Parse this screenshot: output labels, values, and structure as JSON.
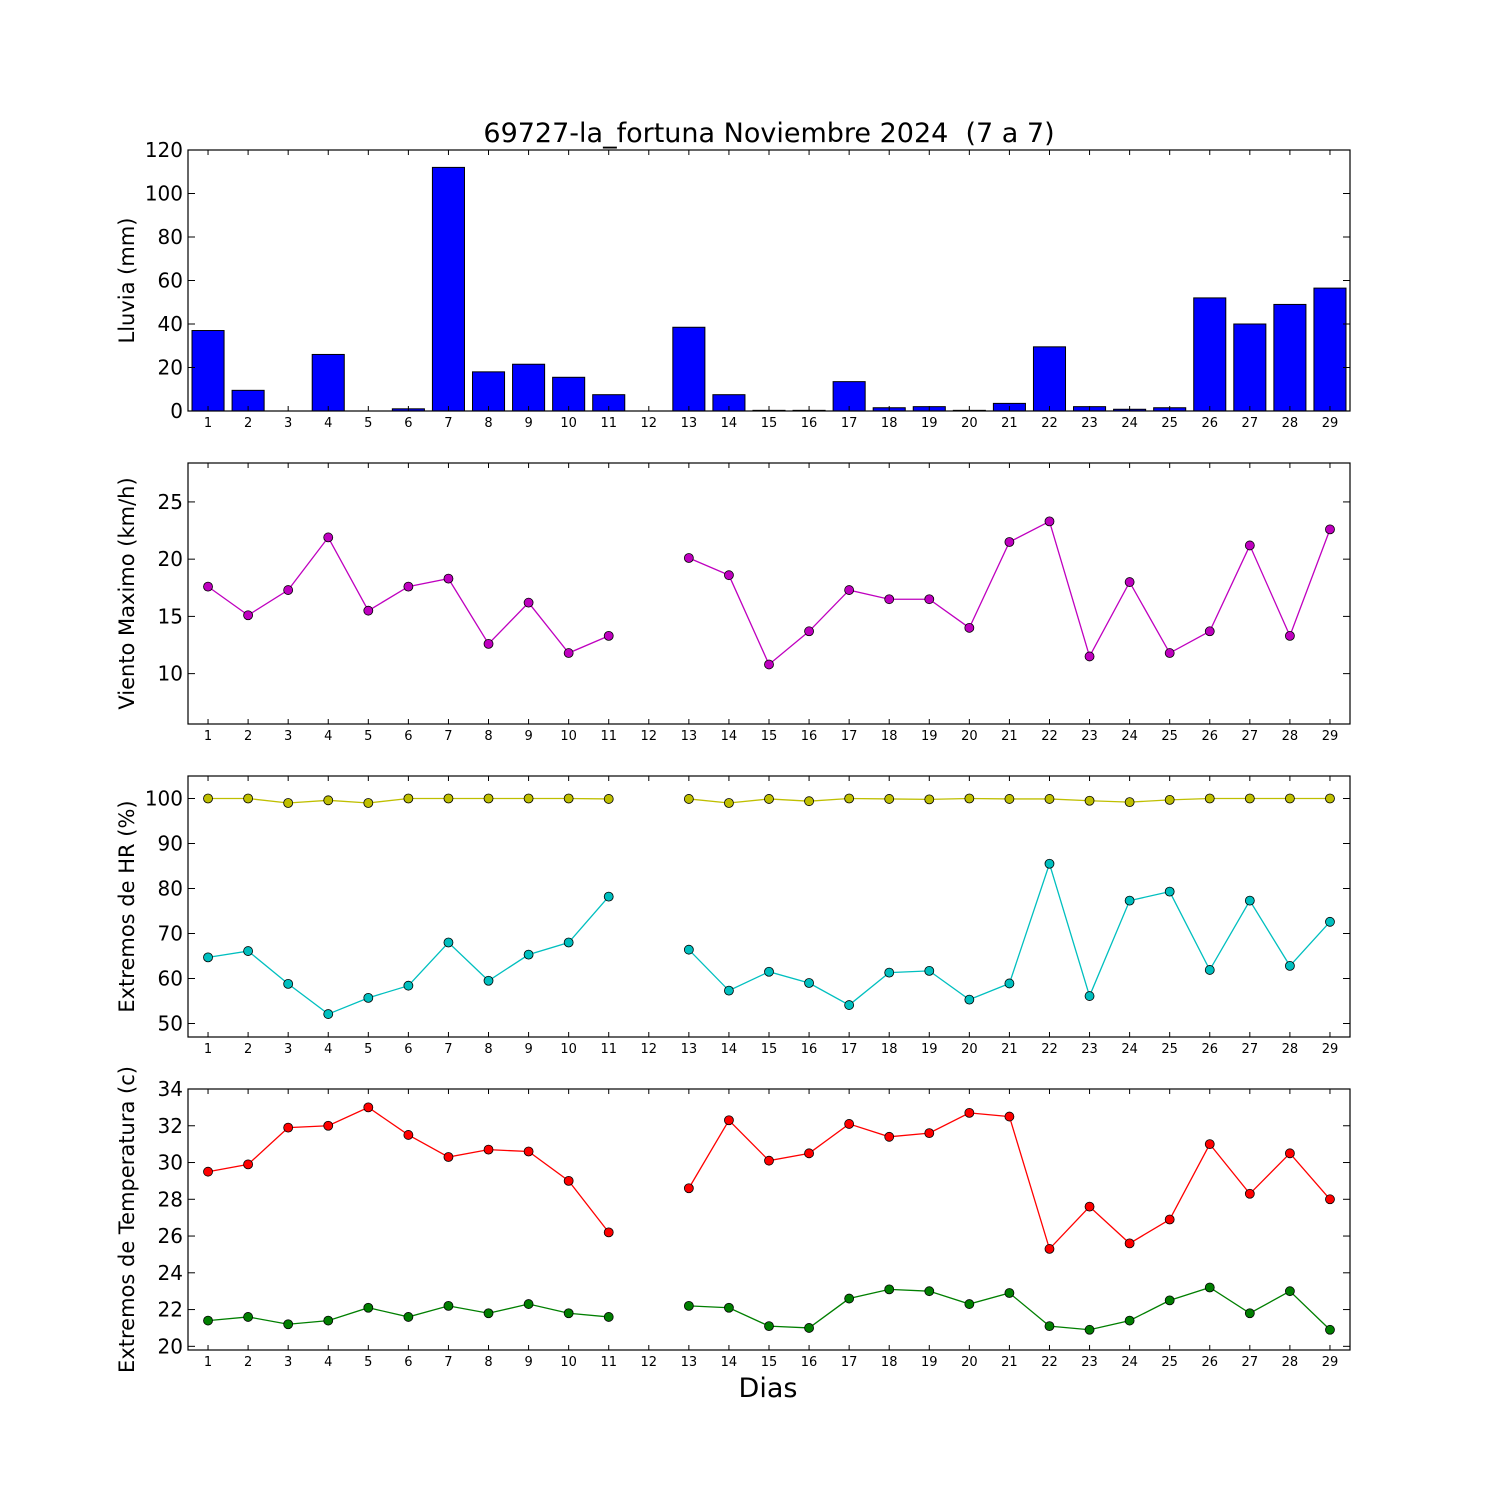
{
  "chart_data": {
    "title": "69727-la_fortuna Noviembre 2024  (7 a 7)",
    "xlabel": "Dias",
    "days": [
      1,
      2,
      3,
      4,
      5,
      6,
      7,
      8,
      9,
      10,
      11,
      12,
      13,
      14,
      15,
      16,
      17,
      18,
      19,
      20,
      21,
      22,
      23,
      24,
      25,
      26,
      27,
      28,
      29
    ],
    "xlim": [
      0.5,
      29.5
    ],
    "panels": [
      {
        "type": "bar",
        "ylabel": "Lluvia (mm)",
        "ylim": [
          0,
          120
        ],
        "yticks": [
          0,
          20,
          40,
          60,
          80,
          100,
          120
        ],
        "series": [
          {
            "color": "#0000ff",
            "values": [
              37,
              9.5,
              0,
              26,
              0,
              1,
              112,
              18,
              21.5,
              15.5,
              7.5,
              null,
              38.5,
              7.5,
              0.3,
              0.3,
              13.5,
              1.5,
              2,
              0.3,
              3.5,
              29.5,
              2,
              0.8,
              1.5,
              52,
              40,
              49,
              56.5
            ]
          }
        ]
      },
      {
        "type": "line",
        "ylabel": "Viento Maximo (km/h)",
        "ylim": [
          5.6,
          28.4
        ],
        "yticks": [
          10,
          15,
          20,
          25
        ],
        "series": [
          {
            "color": "#bf00bf",
            "values": [
              17.6,
              15.1,
              17.3,
              21.9,
              15.5,
              17.6,
              18.3,
              12.6,
              16.2,
              11.8,
              13.3,
              null,
              20.1,
              18.6,
              10.8,
              13.7,
              17.3,
              16.5,
              16.5,
              14,
              21.5,
              23.3,
              11.5,
              18,
              11.8,
              13.7,
              21.2,
              13.3,
              22.6
            ]
          }
        ]
      },
      {
        "type": "line",
        "ylabel": "Extremos de HR (%)",
        "ylim": [
          47,
          105
        ],
        "yticks": [
          50,
          60,
          70,
          80,
          90,
          100
        ],
        "series": [
          {
            "color": "#bfbf00",
            "values": [
              100,
              100,
              99,
              99.6,
              99,
              100,
              100,
              100,
              100,
              100,
              99.9,
              null,
              99.9,
              99,
              99.9,
              99.4,
              100,
              99.9,
              99.8,
              100,
              99.9,
              99.9,
              99.5,
              99.2,
              99.7,
              100,
              100,
              100,
              100
            ]
          },
          {
            "color": "#00bfbf",
            "values": [
              64.7,
              66.1,
              58.8,
              52.1,
              55.7,
              58.4,
              68,
              59.5,
              65.3,
              68,
              78.2,
              null,
              66.4,
              57.3,
              61.5,
              59,
              54.1,
              61.3,
              61.7,
              55.3,
              58.9,
              85.5,
              56.1,
              77.3,
              79.3,
              61.9,
              77.3,
              62.8,
              72.6
            ]
          }
        ]
      },
      {
        "type": "line",
        "ylabel": "Extremos de Temperatura (c)",
        "ylim": [
          19.8,
          34
        ],
        "yticks": [
          20,
          22,
          24,
          26,
          28,
          30,
          32,
          34
        ],
        "series": [
          {
            "color": "#ff0000",
            "values": [
              29.5,
              29.9,
              31.9,
              32,
              33,
              31.5,
              30.3,
              30.7,
              30.6,
              29,
              26.2,
              null,
              28.6,
              32.3,
              30.1,
              30.5,
              32.1,
              31.4,
              31.6,
              32.7,
              32.5,
              25.3,
              27.6,
              25.6,
              26.9,
              31,
              28.3,
              30.5,
              28
            ]
          },
          {
            "color": "#007f00",
            "values": [
              21.4,
              21.6,
              21.2,
              21.4,
              22.1,
              21.6,
              22.2,
              21.8,
              22.3,
              21.8,
              21.6,
              null,
              22.2,
              22.1,
              21.1,
              21,
              22.6,
              23.1,
              23,
              22.3,
              22.9,
              21.1,
              20.9,
              21.4,
              22.5,
              23.2,
              21.8,
              23,
              20.9
            ]
          }
        ]
      }
    ]
  }
}
